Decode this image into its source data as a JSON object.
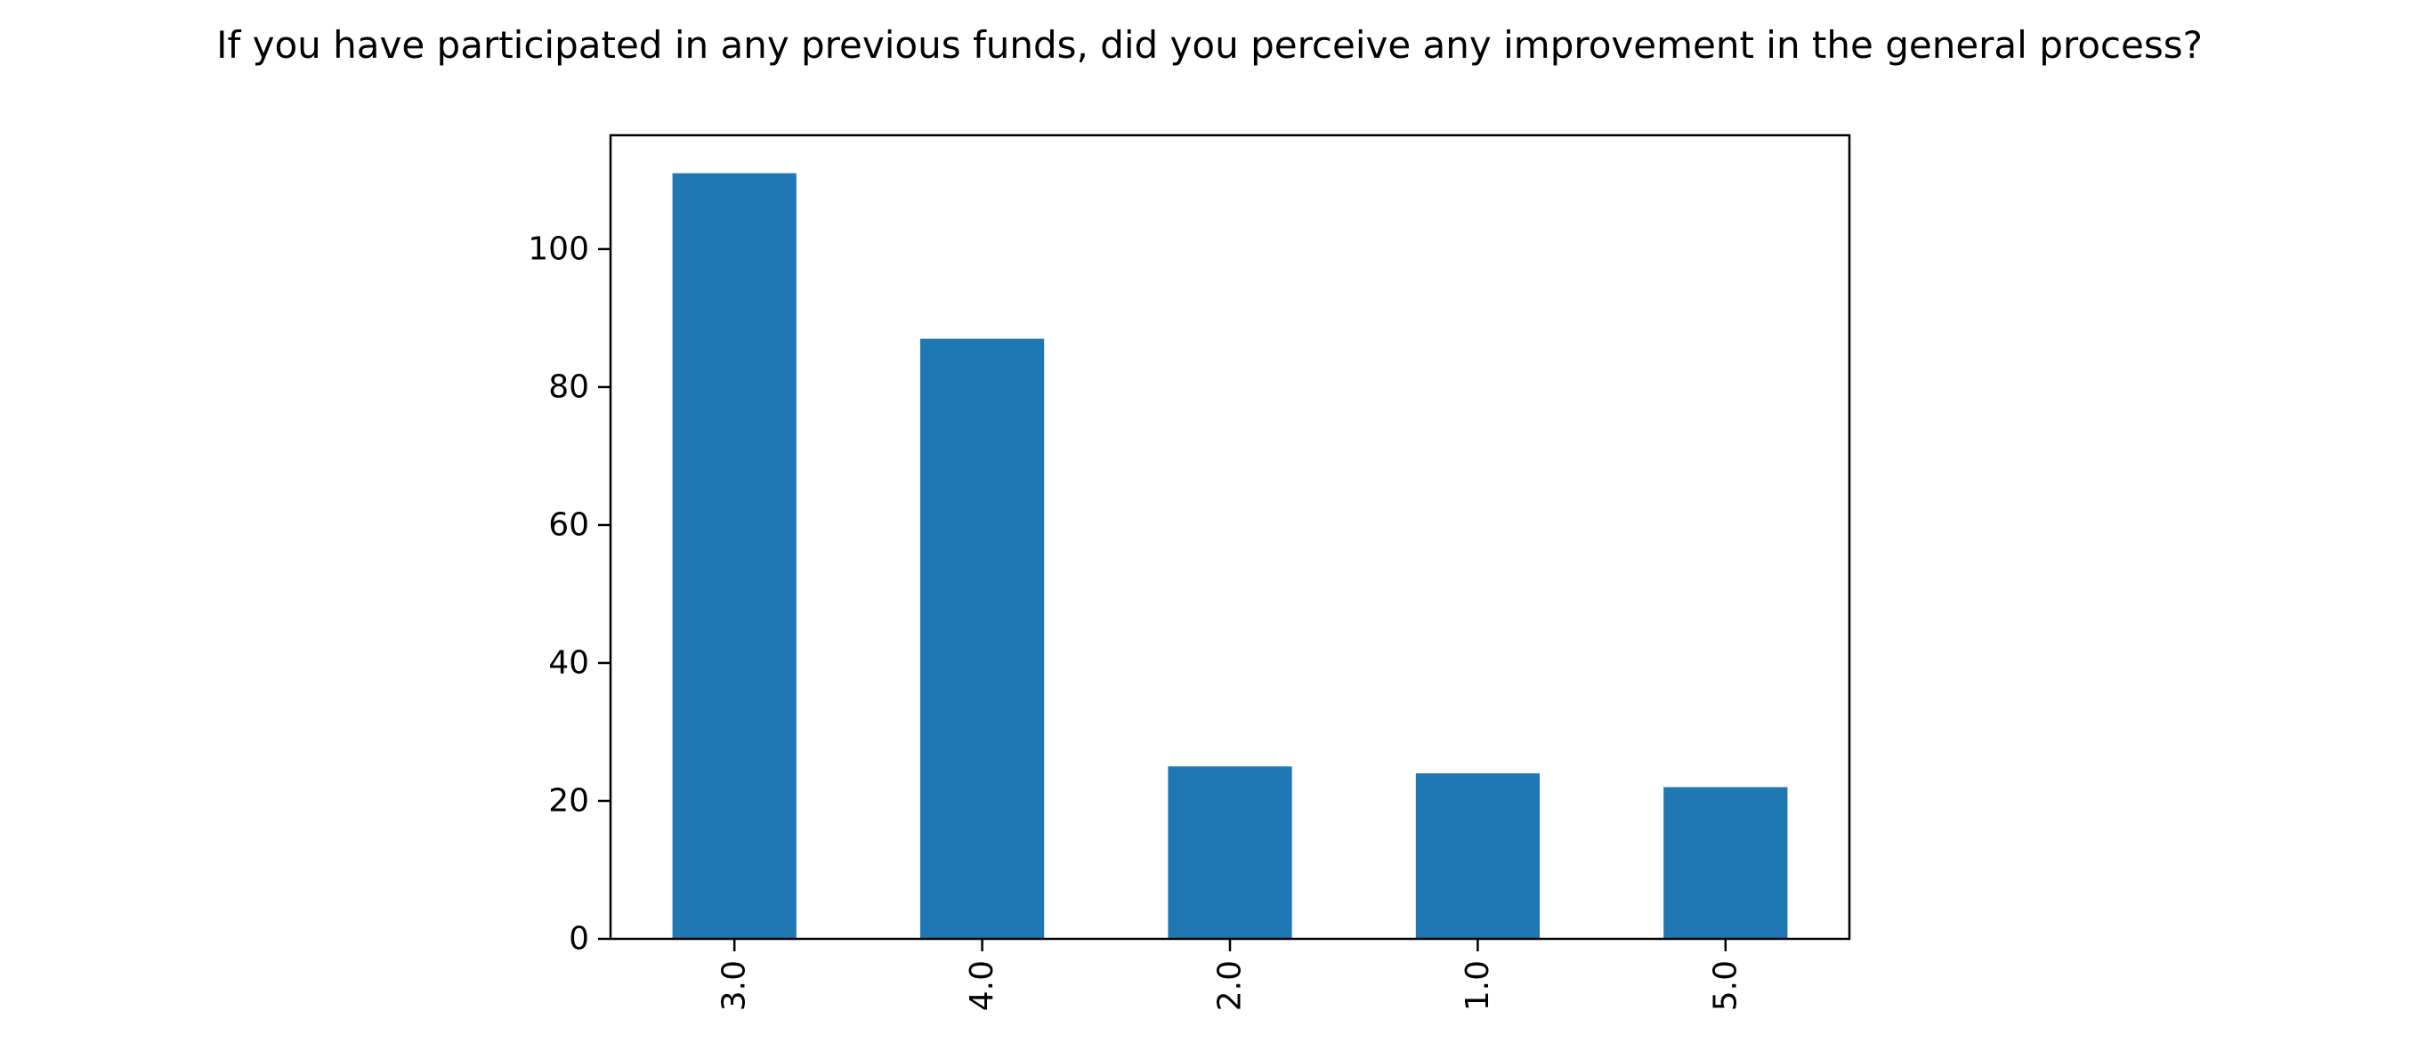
{
  "chart_data": {
    "type": "bar",
    "title": "If you have participated in any previous funds, did you perceive any improvement in the general process?",
    "xlabel": "",
    "ylabel": "",
    "categories": [
      "3.0",
      "4.0",
      "2.0",
      "1.0",
      "5.0"
    ],
    "values": [
      111,
      87,
      25,
      24,
      22
    ],
    "ylim": [
      0,
      116.5
    ],
    "yticks": [
      0,
      20,
      40,
      60,
      80,
      100
    ],
    "ytick_labels": [
      "0",
      "20",
      "40",
      "60",
      "80",
      "100"
    ],
    "xtick_rotation": "vertical",
    "grid": false,
    "legend": "none",
    "bar_color": "#1f77b4"
  }
}
